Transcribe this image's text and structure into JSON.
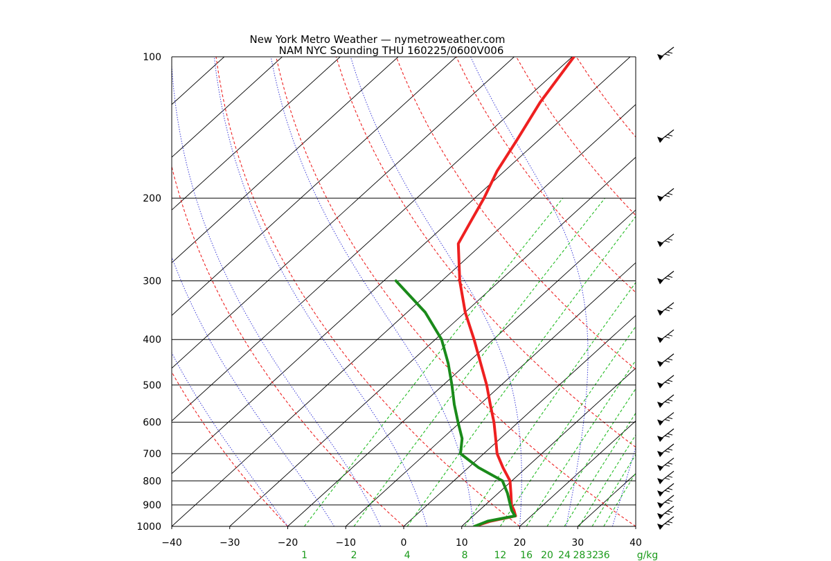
{
  "chart_data": {
    "type": "skew-t sounding",
    "title": "New York Metro Weather — nymetroweather.com",
    "subtitle": "NAM NYC Sounding  THU 160225/0600V006",
    "pressure_levels": [
      100,
      200,
      300,
      400,
      500,
      600,
      700,
      800,
      900,
      1000
    ],
    "pressure_range": [
      1000,
      100
    ],
    "temperature_ticks": [
      -40,
      -30,
      -20,
      -10,
      0,
      10,
      20,
      30,
      40
    ],
    "temperature_tick_labels": [
      "−40",
      "−30",
      "−20",
      "−10",
      "0",
      "10",
      "20",
      "30",
      "40"
    ],
    "mixing_ratio_ticks": [
      1,
      2,
      4,
      8,
      12,
      16,
      20,
      24,
      28,
      32,
      36
    ],
    "mixing_ratio_unit": "g/kg",
    "series": [
      {
        "name": "",
        "color": "#ee2020",
        "points": [
          {
            "p": 1000,
            "t": 12.2
          },
          {
            "p": 975,
            "t": 14.0
          },
          {
            "p": 950,
            "t": 17.3
          },
          {
            "p": 925,
            "t": 16.0
          },
          {
            "p": 900,
            "t": 14.5
          },
          {
            "p": 850,
            "t": 12.2
          },
          {
            "p": 800,
            "t": 9.7
          },
          {
            "p": 750,
            "t": 6.0
          },
          {
            "p": 700,
            "t": 2.3
          },
          {
            "p": 650,
            "t": -0.8
          },
          {
            "p": 600,
            "t": -4.2
          },
          {
            "p": 550,
            "t": -8.2
          },
          {
            "p": 500,
            "t": -12.5
          },
          {
            "p": 450,
            "t": -17.6
          },
          {
            "p": 400,
            "t": -23.3
          },
          {
            "p": 350,
            "t": -30.0
          },
          {
            "p": 300,
            "t": -36.9
          },
          {
            "p": 250,
            "t": -44.2
          },
          {
            "p": 225,
            "t": -46.2
          },
          {
            "p": 200,
            "t": -48.4
          },
          {
            "p": 175,
            "t": -51.3
          },
          {
            "p": 150,
            "t": -53.8
          },
          {
            "p": 125,
            "t": -56.9
          },
          {
            "p": 100,
            "t": -59.7
          }
        ]
      },
      {
        "name": "",
        "color": "#1a8a1a",
        "points": [
          {
            "p": 1000,
            "t": 12.2
          },
          {
            "p": 975,
            "t": 13.5
          },
          {
            "p": 950,
            "t": 17.2
          },
          {
            "p": 925,
            "t": 15.6
          },
          {
            "p": 900,
            "t": 14.3
          },
          {
            "p": 850,
            "t": 11.6
          },
          {
            "p": 800,
            "t": 8.4
          },
          {
            "p": 750,
            "t": 1.8
          },
          {
            "p": 700,
            "t": -4.0
          },
          {
            "p": 650,
            "t": -6.6
          },
          {
            "p": 600,
            "t": -10.4
          },
          {
            "p": 550,
            "t": -14.4
          },
          {
            "p": 500,
            "t": -18.5
          },
          {
            "p": 450,
            "t": -23.2
          },
          {
            "p": 400,
            "t": -28.9
          },
          {
            "p": 350,
            "t": -36.9
          },
          {
            "p": 300,
            "t": -47.9
          }
        ]
      }
    ],
    "wind_barb_levels": [
      100,
      150,
      200,
      250,
      300,
      350,
      400,
      450,
      500,
      550,
      600,
      650,
      700,
      750,
      800,
      850,
      900,
      950,
      1000
    ],
    "grid": true,
    "colors": {
      "isotherm": "#000000",
      "dry_adiabat": "#ee2020",
      "moist_adiabat": "#3a3ad6",
      "mixing_ratio": "#22bb22",
      "barb": "#000000"
    }
  }
}
